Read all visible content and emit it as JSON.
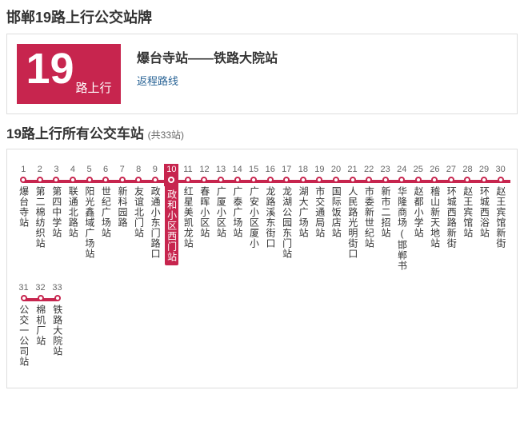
{
  "page_title": "邯郸19路上行公交站牌",
  "route": {
    "number": "19",
    "direction": "路上行",
    "title": "爆台寺站——铁路大院站",
    "return_link": "返程路线"
  },
  "section": {
    "title": "19路上行所有公交车站",
    "count_label": "(共33站)"
  },
  "colors": {
    "accent": "#c7254e",
    "link": "#2a6496",
    "border": "#ddd",
    "text": "#333",
    "muted": "#666"
  },
  "current_index": 10,
  "row_break": 30,
  "stations": [
    "爆台寺站",
    "第二棉纺织站",
    "第四中学站",
    "联通北路站",
    "阳光鑫域广场站",
    "世纪广场站",
    "新科园路",
    "友谊北门站",
    "政通小东门路口",
    "政和小区西门站",
    "红星美凯龙站",
    "春晖小区站",
    "广厦小区站",
    "广泰广场站",
    "广安小区厦小",
    "龙路溪东街口",
    "龙湖公园东门站",
    "湖大广场站",
    "市交通局站",
    "国际饭店站",
    "人民路光明街口",
    "市委新世纪站",
    "新市二招站",
    "华隆商场(邯郸书",
    "赵都小学站",
    "稽山新天地站",
    "环城西路新街",
    "赵王宾馆站",
    "环城西浴站",
    "赵王宾馆新街",
    "公交一公司站",
    "棉机厂站",
    "铁路大院站"
  ]
}
